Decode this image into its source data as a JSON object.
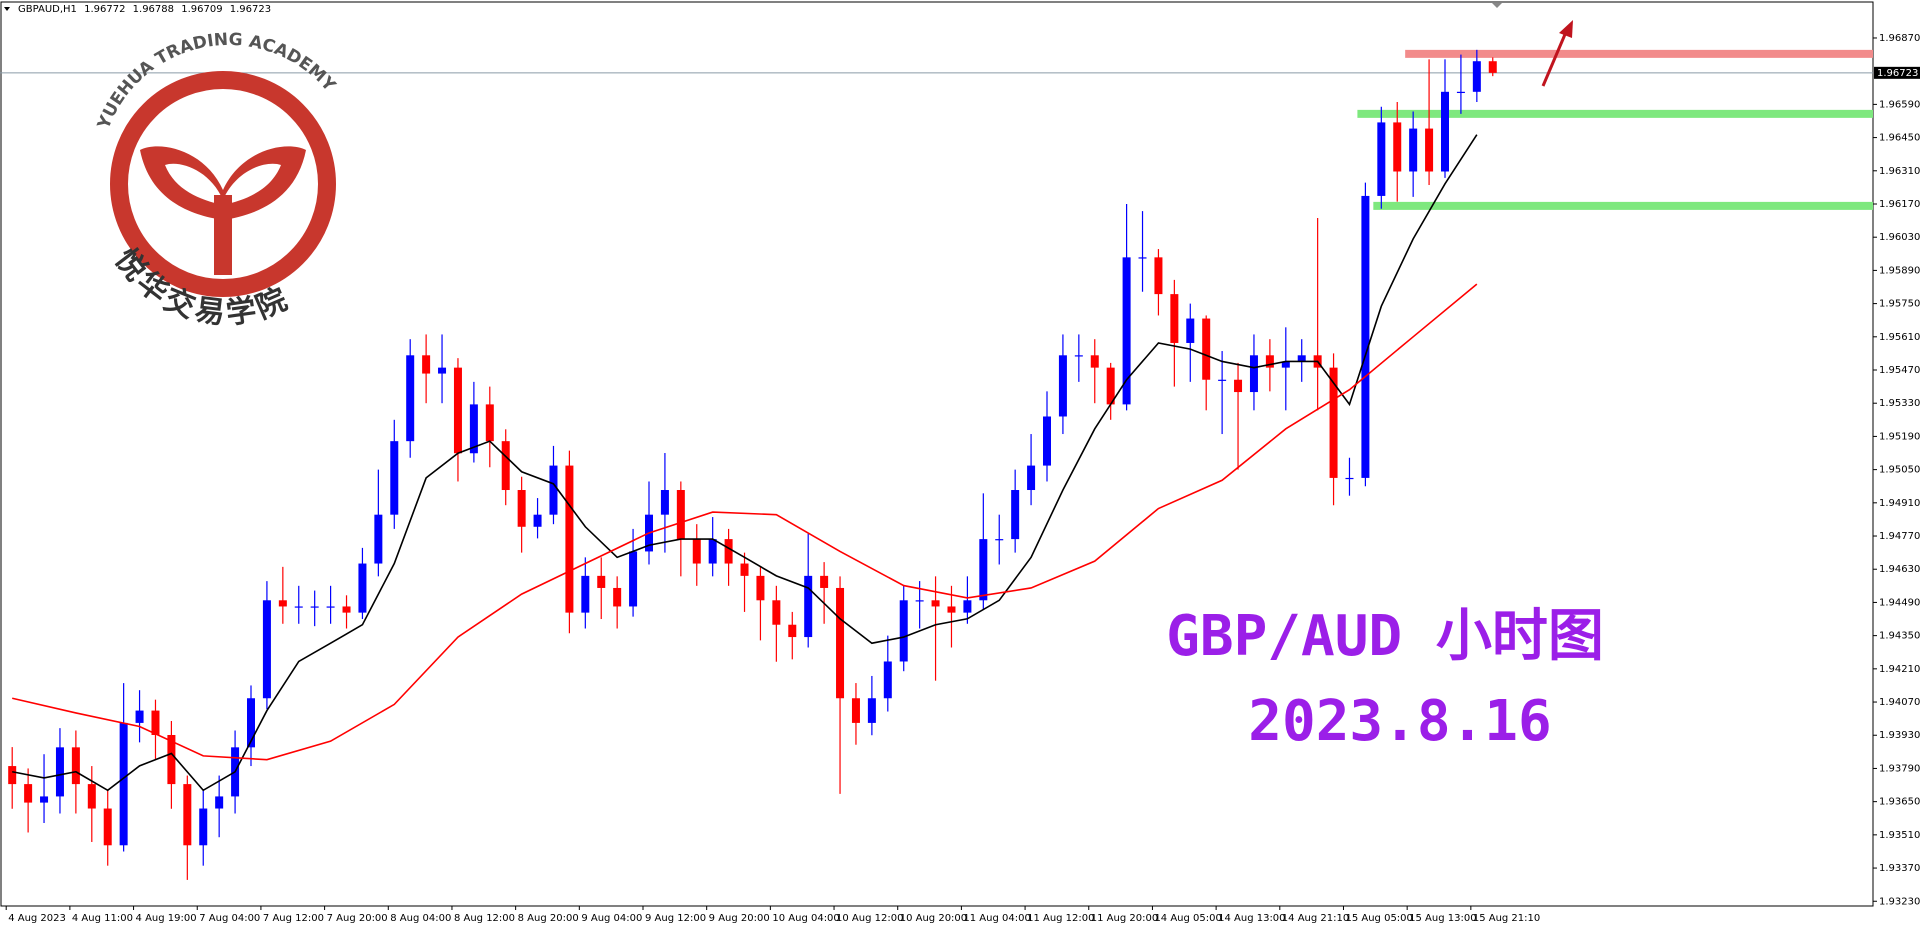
{
  "chart_data": {
    "type": "candlestick",
    "symbol": "GBPAUD,H1",
    "logo_text": "YUEHUA TRADING ACADEMY",
    "logo_cn": "悦华交易学院",
    "annotations": [
      "GBP/AUD 小时图",
      "2023.8.16"
    ],
    "annotation_color": "#9b1fe8",
    "up_color": "#0000ff",
    "down_color": "#ff0000",
    "ylim": [
      1.9321,
      1.9702
    ],
    "yticks": [
      {
        "value": 1.9687,
        "label": "1.96870"
      },
      {
        "value": 1.9659,
        "label": "1.96590"
      },
      {
        "value": 1.9645,
        "label": "1.96450"
      },
      {
        "value": 1.9631,
        "label": "1.96310"
      },
      {
        "value": 1.9617,
        "label": "1.96170"
      },
      {
        "value": 1.9603,
        "label": "1.96030"
      },
      {
        "value": 1.9589,
        "label": "1.95890"
      },
      {
        "value": 1.9575,
        "label": "1.95750"
      },
      {
        "value": 1.9561,
        "label": "1.95610"
      },
      {
        "value": 1.9547,
        "label": "1.95470"
      },
      {
        "value": 1.9533,
        "label": "1.95330"
      },
      {
        "value": 1.9519,
        "label": "1.95190"
      },
      {
        "value": 1.9505,
        "label": "1.95050"
      },
      {
        "value": 1.9491,
        "label": "1.94910"
      },
      {
        "value": 1.9477,
        "label": "1.94770"
      },
      {
        "value": 1.9463,
        "label": "1.94630"
      },
      {
        "value": 1.9449,
        "label": "1.94490"
      },
      {
        "value": 1.9435,
        "label": "1.94350"
      },
      {
        "value": 1.9421,
        "label": "1.94210"
      },
      {
        "value": 1.9407,
        "label": "1.94070"
      },
      {
        "value": 1.9393,
        "label": "1.93930"
      },
      {
        "value": 1.9379,
        "label": "1.93790"
      },
      {
        "value": 1.9365,
        "label": "1.93650"
      },
      {
        "value": 1.9351,
        "label": "1.93510"
      },
      {
        "value": 1.9337,
        "label": "1.93370"
      },
      {
        "value": 1.9323,
        "label": "1.93230"
      }
    ],
    "categories": [
      "4 Aug 2023",
      null,
      null,
      null,
      "4 Aug 11:00",
      null,
      null,
      null,
      "4 Aug 19:00",
      null,
      null,
      null,
      "7 Aug 04:00",
      null,
      null,
      null,
      "7 Aug 12:00",
      null,
      null,
      null,
      "7 Aug 20:00",
      null,
      null,
      null,
      "8 Aug 04:00",
      null,
      null,
      null,
      "8 Aug 12:00",
      null,
      null,
      null,
      "8 Aug 20:00",
      null,
      null,
      null,
      "9 Aug 04:00",
      null,
      null,
      null,
      "9 Aug 12:00",
      null,
      null,
      null,
      "9 Aug 20:00",
      null,
      null,
      null,
      "10 Aug 04:00",
      null,
      null,
      null,
      "10 Aug 12:00",
      null,
      null,
      null,
      "10 Aug 20:00",
      null,
      null,
      null,
      "11 Aug 04:00",
      null,
      null,
      null,
      "11 Aug 12:00",
      null,
      null,
      null,
      "11 Aug 20:00",
      null,
      null,
      null,
      "14 Aug 05:00",
      null,
      null,
      null,
      "14 Aug 13:00",
      null,
      null,
      null,
      "14 Aug 21:10",
      null,
      null,
      null,
      "15 Aug 05:00",
      null,
      null,
      null,
      "15 Aug 13:00",
      null,
      null,
      null,
      "15 Aug 21:10",
      null
    ],
    "open": [
      1.938,
      1.93724,
      1.93646,
      1.93672,
      1.93879,
      1.93724,
      1.93621,
      1.93466,
      1.93982,
      1.94034,
      1.93931,
      1.93724,
      1.93466,
      1.93621,
      1.93672,
      1.93879,
      1.94086,
      1.94499,
      1.94473,
      1.94473,
      1.94473,
      1.94473,
      1.94447,
      1.94654,
      1.9486,
      1.9517,
      1.95532,
      1.95455,
      1.9548,
      1.95119,
      1.95325,
      1.9517,
      1.94964,
      1.94809,
      1.9486,
      1.95067,
      1.94447,
      1.94602,
      1.94551,
      1.94473,
      1.94705,
      1.9486,
      1.94964,
      1.94757,
      1.94654,
      1.94757,
      1.94654,
      1.94602,
      1.94499,
      1.94396,
      1.94344,
      1.94602,
      1.94551,
      1.94086,
      1.93982,
      1.94086,
      1.94241,
      1.94499,
      1.94499,
      1.94473,
      1.94447,
      1.94499,
      1.94757,
      1.94757,
      1.94964,
      1.95067,
      1.95274,
      1.95532,
      1.95532,
      1.9548,
      1.95325,
      1.95945,
      1.95945,
      1.9579,
      1.95584,
      1.95687,
      1.95429,
      1.95429,
      1.95377,
      1.95532,
      1.9548,
      1.95506,
      1.95532,
      1.9548,
      1.95015,
      1.95015,
      1.96204,
      1.96514,
      1.96307,
      1.96488,
      1.96307,
      1.96643,
      1.96643,
      1.96772
    ],
    "high": [
      1.9388,
      1.9379,
      1.9385,
      1.9396,
      1.9395,
      1.938,
      1.937,
      1.9415,
      1.9412,
      1.9408,
      1.9399,
      1.9376,
      1.937,
      1.9376,
      1.9395,
      1.9414,
      1.9458,
      1.9464,
      1.9456,
      1.9454,
      1.9456,
      1.9452,
      1.9472,
      1.9505,
      1.9526,
      1.956,
      1.9562,
      1.9562,
      1.9552,
      1.9542,
      1.954,
      1.9522,
      1.9502,
      1.9493,
      1.9515,
      1.9513,
      1.9468,
      1.9468,
      1.946,
      1.948,
      1.95,
      1.9512,
      1.95,
      1.9482,
      1.9485,
      1.948,
      1.947,
      1.9464,
      1.9456,
      1.9445,
      1.9478,
      1.9466,
      1.946,
      1.9415,
      1.9418,
      1.9435,
      1.9456,
      1.9458,
      1.946,
      1.9456,
      1.946,
      1.9495,
      1.9486,
      1.9505,
      1.952,
      1.9538,
      1.9562,
      1.9562,
      1.956,
      1.955,
      1.9617,
      1.9614,
      1.9598,
      1.9585,
      1.9575,
      1.957,
      1.9555,
      1.955,
      1.9562,
      1.956,
      1.9565,
      1.956,
      1.96111,
      1.9554,
      1.951,
      1.9626,
      1.9658,
      1.966,
      1.9656,
      1.9678,
      1.9678,
      1.968,
      1.9682,
      1.96788
    ],
    "low": [
      1.9362,
      1.9352,
      1.9356,
      1.936,
      1.936,
      1.9348,
      1.9338,
      1.9344,
      1.939,
      1.9383,
      1.9362,
      1.9332,
      1.9338,
      1.935,
      1.936,
      1.938,
      1.9404,
      1.944,
      1.944,
      1.9439,
      1.944,
      1.9438,
      1.9442,
      1.946,
      1.948,
      1.951,
      1.9533,
      1.9533,
      1.95,
      1.9508,
      1.9506,
      1.949,
      1.947,
      1.9476,
      1.9482,
      1.9436,
      1.9438,
      1.9442,
      1.9438,
      1.9443,
      1.9465,
      1.947,
      1.946,
      1.9456,
      1.946,
      1.9456,
      1.9445,
      1.9433,
      1.9424,
      1.9425,
      1.943,
      1.944,
      1.93683,
      1.9389,
      1.9393,
      1.9403,
      1.942,
      1.9438,
      1.9416,
      1.943,
      1.944,
      1.9446,
      1.9465,
      1.947,
      1.949,
      1.95,
      1.952,
      1.9542,
      1.9533,
      1.9526,
      1.953,
      1.958,
      1.957,
      1.954,
      1.9542,
      1.953,
      1.952,
      1.9505,
      1.953,
      1.9538,
      1.953,
      1.9542,
      1.953,
      1.949,
      1.9494,
      1.9498,
      1.9615,
      1.9618,
      1.962,
      1.9625,
      1.9628,
      1.9655,
      1.966,
      1.96709
    ],
    "close": [
      1.93724,
      1.93646,
      1.93672,
      1.93879,
      1.93724,
      1.93621,
      1.93466,
      1.93982,
      1.94034,
      1.93931,
      1.93724,
      1.93466,
      1.93621,
      1.93672,
      1.93879,
      1.94086,
      1.94499,
      1.94473,
      1.94473,
      1.94473,
      1.94473,
      1.94447,
      1.94654,
      1.9486,
      1.9517,
      1.95532,
      1.95455,
      1.9548,
      1.95119,
      1.95325,
      1.9517,
      1.94964,
      1.94809,
      1.9486,
      1.95067,
      1.94447,
      1.94602,
      1.94551,
      1.94473,
      1.94705,
      1.9486,
      1.94964,
      1.94757,
      1.94654,
      1.94757,
      1.94654,
      1.94602,
      1.94499,
      1.94396,
      1.94344,
      1.94602,
      1.94551,
      1.94086,
      1.93982,
      1.94086,
      1.94241,
      1.94499,
      1.94499,
      1.94473,
      1.94447,
      1.94499,
      1.94757,
      1.94757,
      1.94964,
      1.95067,
      1.95274,
      1.95532,
      1.95532,
      1.9548,
      1.95325,
      1.95945,
      1.95945,
      1.9579,
      1.95584,
      1.95687,
      1.95429,
      1.95429,
      1.95377,
      1.95532,
      1.9548,
      1.95506,
      1.95532,
      1.9548,
      1.95015,
      1.95015,
      1.96204,
      1.96514,
      1.96307,
      1.96488,
      1.96307,
      1.96643,
      1.96643,
      1.96772,
      1.96723
    ],
    "lines": [
      {
        "color": "#000000",
        "x": [
          0,
          2,
          4,
          6,
          8,
          10,
          12,
          14,
          16,
          18,
          20,
          22,
          24,
          26,
          28,
          30,
          32,
          34,
          36,
          38,
          40,
          42,
          44,
          46,
          48,
          50,
          52,
          54,
          56,
          58,
          60,
          62,
          64,
          66,
          68,
          70,
          72,
          74,
          76,
          78,
          80,
          82,
          84,
          86,
          88,
          90,
          92
        ],
        "values": [
          1.93776,
          1.9375,
          1.93776,
          1.93698,
          1.93801,
          1.93853,
          1.93698,
          1.93776,
          1.94034,
          1.94241,
          1.94318,
          1.94396,
          1.94654,
          1.95015,
          1.95119,
          1.9517,
          1.95041,
          1.9499,
          1.94809,
          1.9468,
          1.94731,
          1.94757,
          1.94757,
          1.9468,
          1.94602,
          1.94551,
          1.94421,
          1.94318,
          1.94344,
          1.94396,
          1.94421,
          1.94499,
          1.9468,
          1.94964,
          1.95222,
          1.95429,
          1.95584,
          1.95558,
          1.95506,
          1.9548,
          1.95506,
          1.95506,
          1.95325,
          1.95739,
          1.96023,
          1.96255,
          1.96462
        ]
      },
      {
        "color": "#ff0000",
        "x": [
          0,
          4,
          8,
          12,
          16,
          20,
          24,
          28,
          32,
          36,
          40,
          44,
          48,
          52,
          56,
          60,
          64,
          68,
          72,
          76,
          80,
          84,
          88,
          92
        ],
        "values": [
          1.94086,
          1.94024,
          1.93967,
          1.93843,
          1.93827,
          1.93905,
          1.9406,
          1.94344,
          1.94525,
          1.94654,
          1.94783,
          1.94871,
          1.9486,
          1.94705,
          1.94561,
          1.94509,
          1.94551,
          1.94664,
          1.94886,
          1.95005,
          1.95222,
          1.95387,
          1.9561,
          1.95832
        ]
      }
    ],
    "levels": [
      {
        "value": 1.96803,
        "color": "#f28b8b",
        "from": 88
      },
      {
        "value": 1.9655,
        "color": "#7ee87e",
        "from": 85
      },
      {
        "value": 1.96162,
        "color": "#7ee87e",
        "from": 86
      }
    ]
  }
}
